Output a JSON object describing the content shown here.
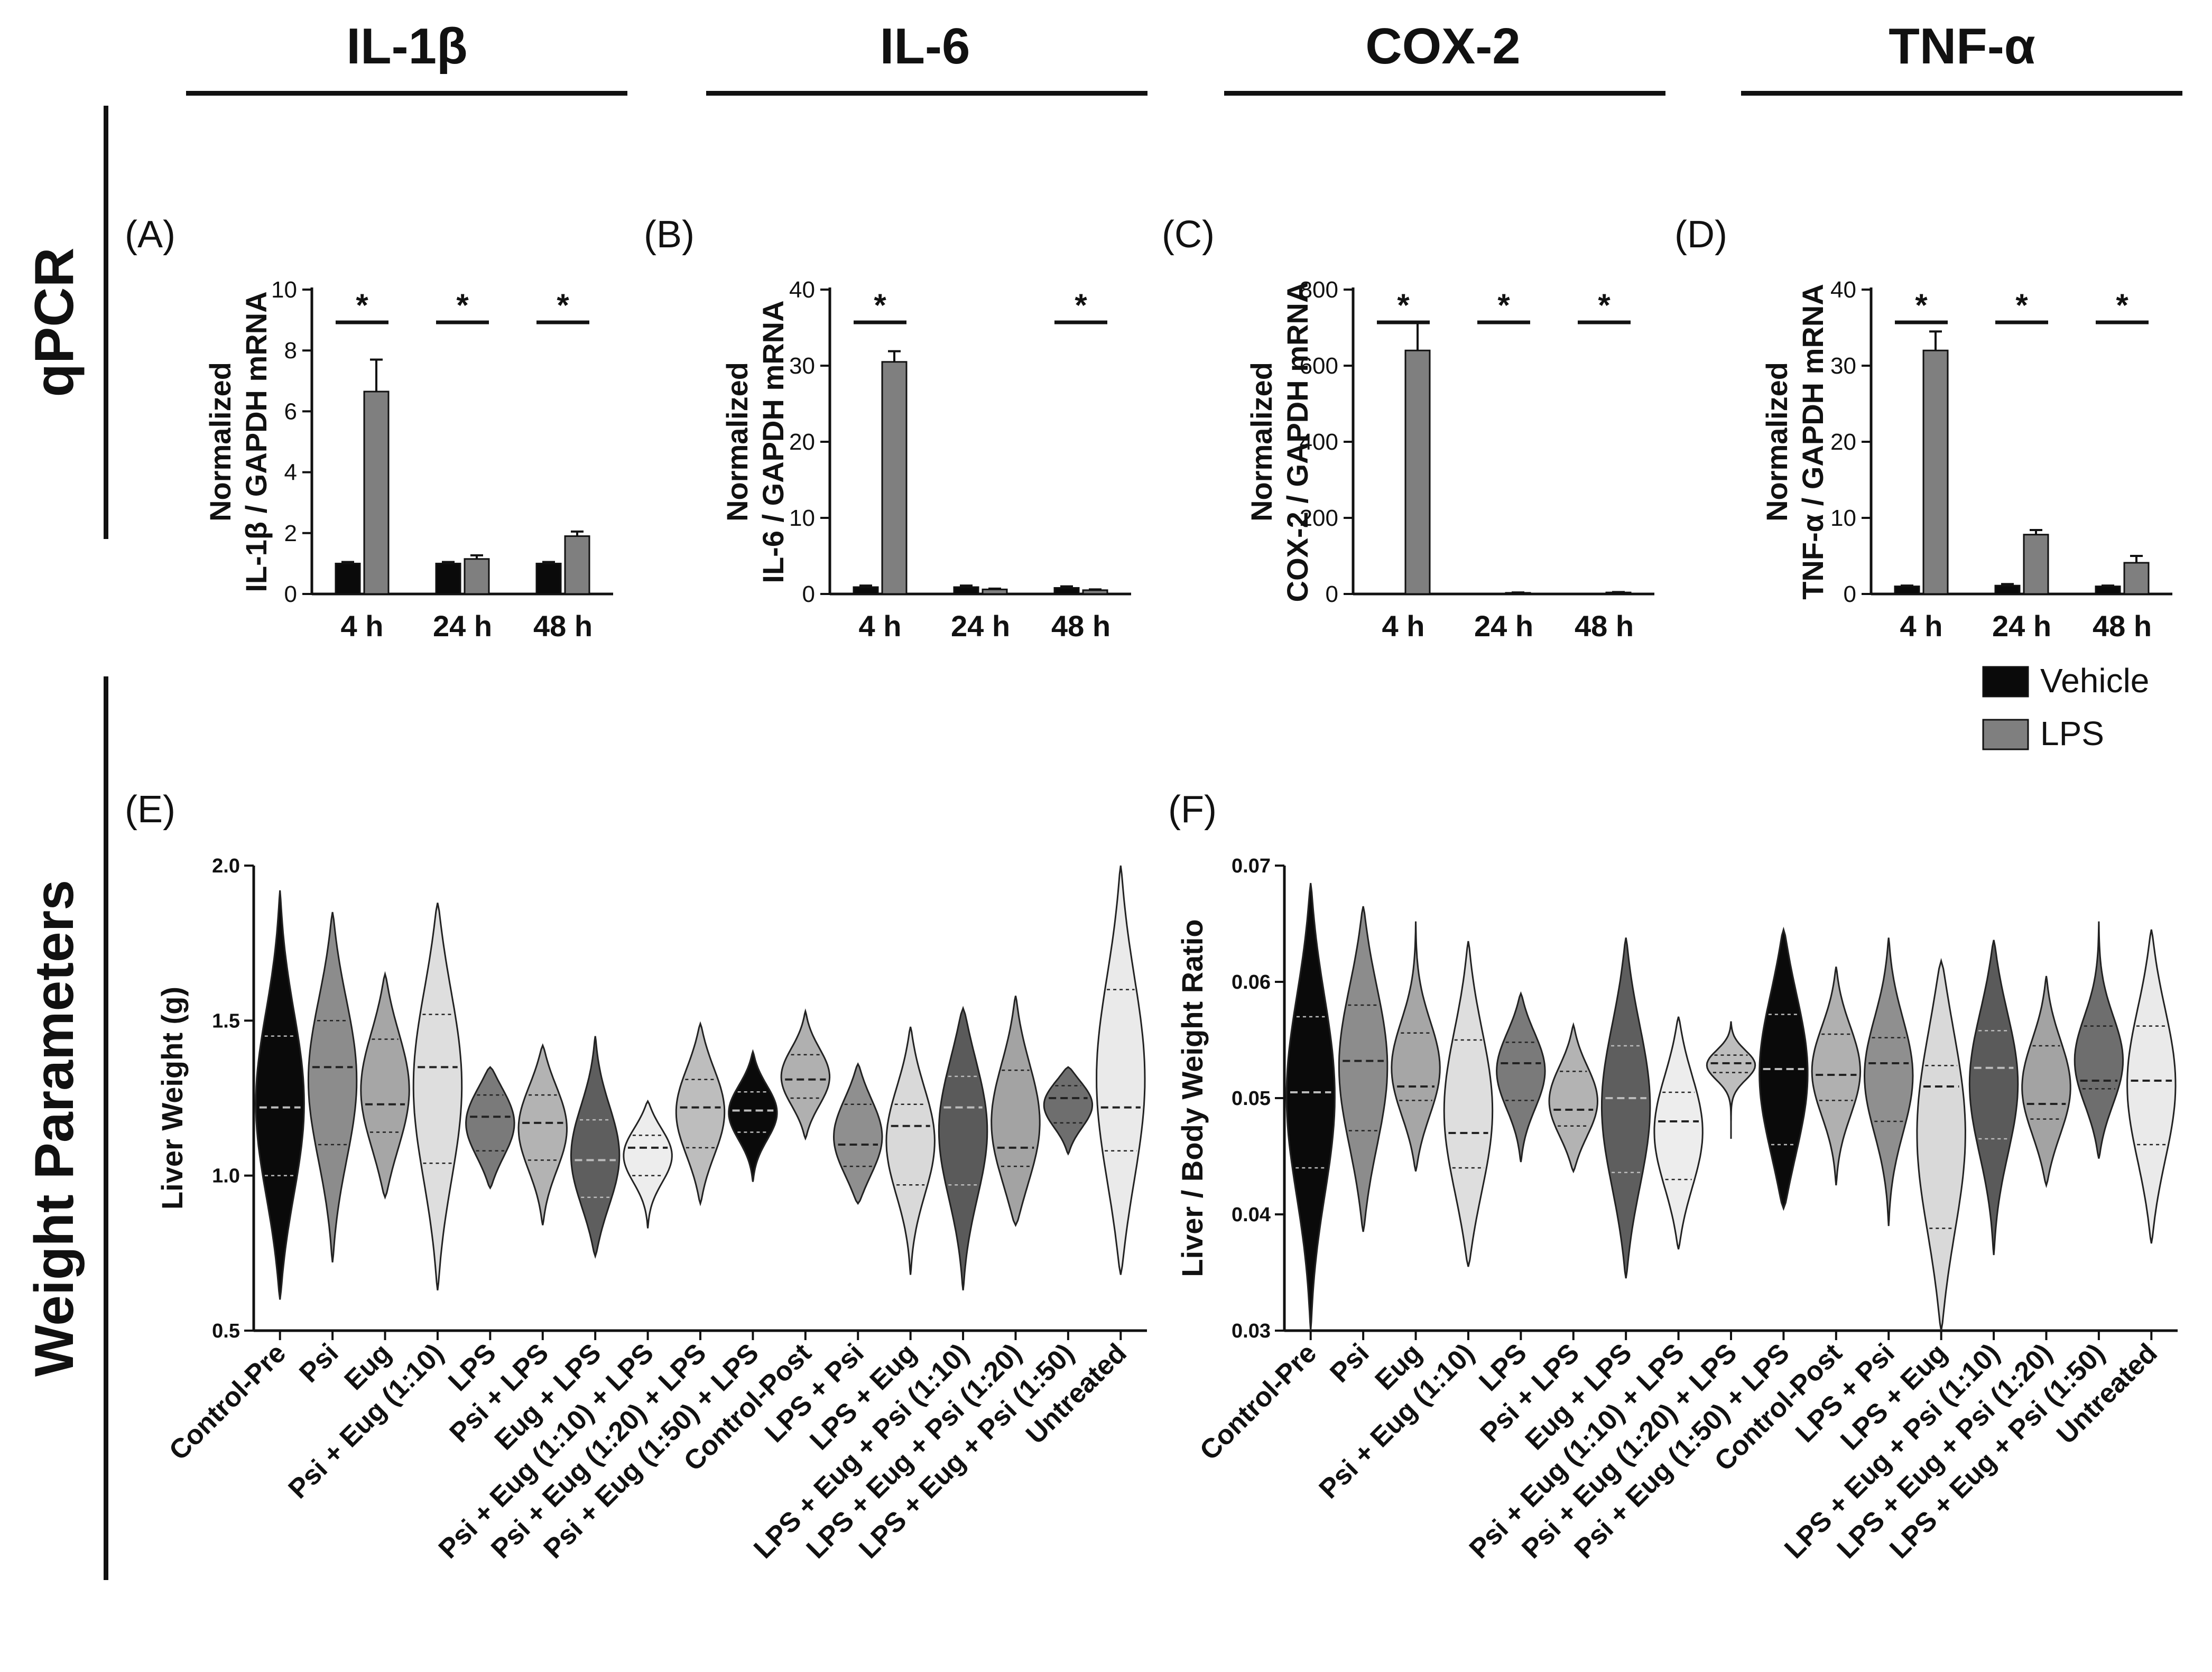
{
  "headers": [
    "IL-1β",
    "IL-6",
    "COX-2",
    "TNF-α"
  ],
  "row_labels": {
    "top": "qPCR",
    "bottom": "Weight Parameters"
  },
  "legend": {
    "vehicle": "Vehicle",
    "lps": "LPS"
  },
  "colors": {
    "vehicle": "#0a0a0a",
    "lps": "#7f7f7f",
    "axis": "#111111"
  },
  "chart_data": [
    {
      "id": "A",
      "type": "bar",
      "panel_label": "(A)",
      "title": "IL-1β",
      "ylabel_lines": [
        "Normalized",
        "IL-1β / GAPDH mRNA"
      ],
      "categories": [
        "4 h",
        "24 h",
        "48 h"
      ],
      "ylim": [
        0,
        10
      ],
      "yticks": [
        0,
        2,
        4,
        6,
        8,
        10
      ],
      "series": [
        {
          "name": "Vehicle",
          "values": [
            1.0,
            1.0,
            1.0
          ],
          "errors": [
            0.05,
            0.05,
            0.05
          ]
        },
        {
          "name": "LPS",
          "values": [
            6.65,
            1.15,
            1.9
          ],
          "errors": [
            1.05,
            0.12,
            0.15
          ]
        }
      ],
      "significance": [
        "*",
        "*",
        "*"
      ]
    },
    {
      "id": "B",
      "type": "bar",
      "panel_label": "(B)",
      "title": "IL-6",
      "ylabel_lines": [
        "Normalized",
        "IL-6 / GAPDH mRNA"
      ],
      "categories": [
        "4 h",
        "24 h",
        "48 h"
      ],
      "ylim": [
        0,
        40
      ],
      "yticks": [
        0,
        10,
        20,
        30,
        40
      ],
      "series": [
        {
          "name": "Vehicle",
          "values": [
            0.9,
            0.9,
            0.8
          ],
          "errors": [
            0.2,
            0.2,
            0.2
          ]
        },
        {
          "name": "LPS",
          "values": [
            30.5,
            0.6,
            0.5
          ],
          "errors": [
            1.4,
            0.1,
            0.1
          ]
        }
      ],
      "significance": [
        "*",
        "",
        "*"
      ]
    },
    {
      "id": "C",
      "type": "bar",
      "panel_label": "(C)",
      "title": "COX-2",
      "ylabel_lines": [
        "Normalized",
        "COX-2 / GAPDH mRNA"
      ],
      "categories": [
        "4 h",
        "24 h",
        "48 h"
      ],
      "ylim": [
        0,
        800
      ],
      "yticks": [
        0,
        200,
        400,
        600,
        800
      ],
      "series": [
        {
          "name": "Vehicle",
          "values": [
            1,
            1,
            1
          ],
          "errors": [
            0,
            0,
            0
          ]
        },
        {
          "name": "LPS",
          "values": [
            640,
            3,
            4
          ],
          "errors": [
            75,
            1,
            1
          ]
        }
      ],
      "significance": [
        "*",
        "*",
        "*"
      ]
    },
    {
      "id": "D",
      "type": "bar",
      "panel_label": "(D)",
      "title": "TNF-α",
      "ylabel_lines": [
        "Normalized",
        "TNF-α / GAPDH mRNA"
      ],
      "categories": [
        "4 h",
        "24 h",
        "48 h"
      ],
      "ylim": [
        0,
        40
      ],
      "yticks": [
        0,
        10,
        20,
        30,
        40
      ],
      "series": [
        {
          "name": "Vehicle",
          "values": [
            1.0,
            1.1,
            1.0
          ],
          "errors": [
            0.1,
            0.2,
            0.1
          ]
        },
        {
          "name": "LPS",
          "values": [
            32.0,
            7.8,
            4.1
          ],
          "errors": [
            2.5,
            0.6,
            0.9
          ]
        }
      ],
      "significance": [
        "*",
        "*",
        "*"
      ]
    },
    {
      "id": "E",
      "type": "violin",
      "panel_label": "(E)",
      "ylabel": "Liver Weight (g)",
      "ylim": [
        0.5,
        2.0
      ],
      "yticks": [
        "0.5",
        "1.0",
        "1.5",
        "2.0"
      ],
      "groups": [
        {
          "name": "Control-Pre",
          "min": 0.6,
          "max": 1.92,
          "median": 1.22,
          "q1": 1.0,
          "q3": 1.45,
          "color": "#0a0a0a"
        },
        {
          "name": "Psi",
          "min": 0.72,
          "max": 1.85,
          "median": 1.35,
          "q1": 1.1,
          "q3": 1.5,
          "color": "#8c8c8c"
        },
        {
          "name": "Eug",
          "min": 0.93,
          "max": 1.65,
          "median": 1.23,
          "q1": 1.14,
          "q3": 1.44,
          "color": "#a6a6a6"
        },
        {
          "name": "Psi + Eug (1:10)",
          "min": 0.63,
          "max": 1.88,
          "median": 1.35,
          "q1": 1.04,
          "q3": 1.52,
          "color": "#dedede"
        },
        {
          "name": "LPS",
          "min": 0.96,
          "max": 1.35,
          "median": 1.19,
          "q1": 1.08,
          "q3": 1.26,
          "color": "#7a7a7a"
        },
        {
          "name": "Psi + LPS",
          "min": 0.84,
          "max": 1.42,
          "median": 1.17,
          "q1": 1.05,
          "q3": 1.26,
          "color": "#b3b3b3"
        },
        {
          "name": "Eug + LPS",
          "min": 0.74,
          "max": 1.45,
          "median": 1.05,
          "q1": 0.93,
          "q3": 1.18,
          "color": "#5e5e5e"
        },
        {
          "name": "Psi + Eug (1:10) + LPS",
          "min": 0.83,
          "max": 1.24,
          "median": 1.09,
          "q1": 1.0,
          "q3": 1.13,
          "color": "#ededed"
        },
        {
          "name": "Psi + Eug (1:20) + LPS",
          "min": 0.91,
          "max": 1.49,
          "median": 1.22,
          "q1": 1.09,
          "q3": 1.31,
          "color": "#bdbdbd"
        },
        {
          "name": "Psi + Eug (1:50) + LPS",
          "min": 0.98,
          "max": 1.4,
          "median": 1.21,
          "q1": 1.14,
          "q3": 1.27,
          "color": "#0a0a0a"
        },
        {
          "name": "Control-Post",
          "min": 1.12,
          "max": 1.53,
          "median": 1.31,
          "q1": 1.25,
          "q3": 1.39,
          "color": "#b0b0b0"
        },
        {
          "name": "LPS + Psi",
          "min": 0.91,
          "max": 1.36,
          "median": 1.1,
          "q1": 1.03,
          "q3": 1.23,
          "color": "#8f8f8f"
        },
        {
          "name": "LPS + Eug",
          "min": 0.68,
          "max": 1.48,
          "median": 1.16,
          "q1": 0.97,
          "q3": 1.23,
          "color": "#d9d9d9"
        },
        {
          "name": "LPS + Eug + Psi (1:10)",
          "min": 0.63,
          "max": 1.54,
          "median": 1.22,
          "q1": 0.97,
          "q3": 1.32,
          "color": "#5a5a5a"
        },
        {
          "name": "LPS + Eug + Psi (1:20)",
          "min": 0.84,
          "max": 1.58,
          "median": 1.09,
          "q1": 1.03,
          "q3": 1.34,
          "color": "#a3a3a3"
        },
        {
          "name": "LPS + Eug + Psi (1:50)",
          "min": 1.07,
          "max": 1.35,
          "median": 1.25,
          "q1": 1.17,
          "q3": 1.29,
          "color": "#6e6e6e"
        },
        {
          "name": "Untreated",
          "min": 0.68,
          "max": 2.0,
          "median": 1.22,
          "q1": 1.08,
          "q3": 1.6,
          "color": "#eaeaea"
        }
      ]
    },
    {
      "id": "F",
      "type": "violin",
      "panel_label": "(F)",
      "ylabel": "Liver / Body Weight Ratio",
      "ylim": [
        0.03,
        0.07
      ],
      "yticks": [
        "0.03",
        "0.04",
        "0.05",
        "0.06",
        "0.07"
      ],
      "groups": [
        {
          "name": "Control-Pre",
          "min": 0.03,
          "max": 0.0685,
          "median": 0.0505,
          "q1": 0.044,
          "q3": 0.057,
          "color": "#0a0a0a"
        },
        {
          "name": "Psi",
          "min": 0.0385,
          "max": 0.0665,
          "median": 0.0532,
          "q1": 0.0472,
          "q3": 0.058,
          "color": "#8c8c8c"
        },
        {
          "name": "Eug",
          "min": 0.0437,
          "max": 0.0652,
          "median": 0.051,
          "q1": 0.0498,
          "q3": 0.0556,
          "color": "#a6a6a6"
        },
        {
          "name": "Psi + Eug (1:10)",
          "min": 0.0355,
          "max": 0.0635,
          "median": 0.047,
          "q1": 0.044,
          "q3": 0.055,
          "color": "#dedede"
        },
        {
          "name": "LPS",
          "min": 0.0445,
          "max": 0.059,
          "median": 0.053,
          "q1": 0.0498,
          "q3": 0.0548,
          "color": "#7a7a7a"
        },
        {
          "name": "Psi + LPS",
          "min": 0.0437,
          "max": 0.0563,
          "median": 0.049,
          "q1": 0.0476,
          "q3": 0.0523,
          "color": "#b3b3b3"
        },
        {
          "name": "Eug + LPS",
          "min": 0.0345,
          "max": 0.0638,
          "median": 0.05,
          "q1": 0.0436,
          "q3": 0.0545,
          "color": "#5e5e5e"
        },
        {
          "name": "Psi + Eug (1:10) + LPS",
          "min": 0.037,
          "max": 0.057,
          "median": 0.048,
          "q1": 0.043,
          "q3": 0.0505,
          "color": "#ededed"
        },
        {
          "name": "Psi + Eug (1:20) + LPS",
          "min": 0.0465,
          "max": 0.0566,
          "median": 0.053,
          "q1": 0.0522,
          "q3": 0.0537,
          "color": "#bdbdbd"
        },
        {
          "name": "Psi + Eug (1:50) + LPS",
          "min": 0.0405,
          "max": 0.0645,
          "median": 0.0525,
          "q1": 0.046,
          "q3": 0.0572,
          "color": "#0a0a0a"
        },
        {
          "name": "Control-Post",
          "min": 0.0425,
          "max": 0.0613,
          "median": 0.052,
          "q1": 0.0498,
          "q3": 0.0555,
          "color": "#b0b0b0"
        },
        {
          "name": "LPS + Psi",
          "min": 0.039,
          "max": 0.0638,
          "median": 0.053,
          "q1": 0.048,
          "q3": 0.0552,
          "color": "#8f8f8f"
        },
        {
          "name": "LPS + Eug",
          "min": 0.03,
          "max": 0.0618,
          "median": 0.051,
          "q1": 0.0388,
          "q3": 0.0528,
          "color": "#d9d9d9"
        },
        {
          "name": "LPS + Eug + Psi (1:10)",
          "min": 0.0365,
          "max": 0.0636,
          "median": 0.0526,
          "q1": 0.0465,
          "q3": 0.0558,
          "color": "#5a5a5a"
        },
        {
          "name": "LPS + Eug + Psi (1:20)",
          "min": 0.0425,
          "max": 0.0605,
          "median": 0.0495,
          "q1": 0.0482,
          "q3": 0.0545,
          "color": "#a3a3a3"
        },
        {
          "name": "LPS + Eug + Psi (1:50)",
          "min": 0.0448,
          "max": 0.0652,
          "median": 0.0515,
          "q1": 0.0508,
          "q3": 0.0562,
          "color": "#6e6e6e"
        },
        {
          "name": "Untreated",
          "min": 0.0375,
          "max": 0.0645,
          "median": 0.0515,
          "q1": 0.046,
          "q3": 0.0562,
          "color": "#eaeaea"
        }
      ]
    }
  ]
}
